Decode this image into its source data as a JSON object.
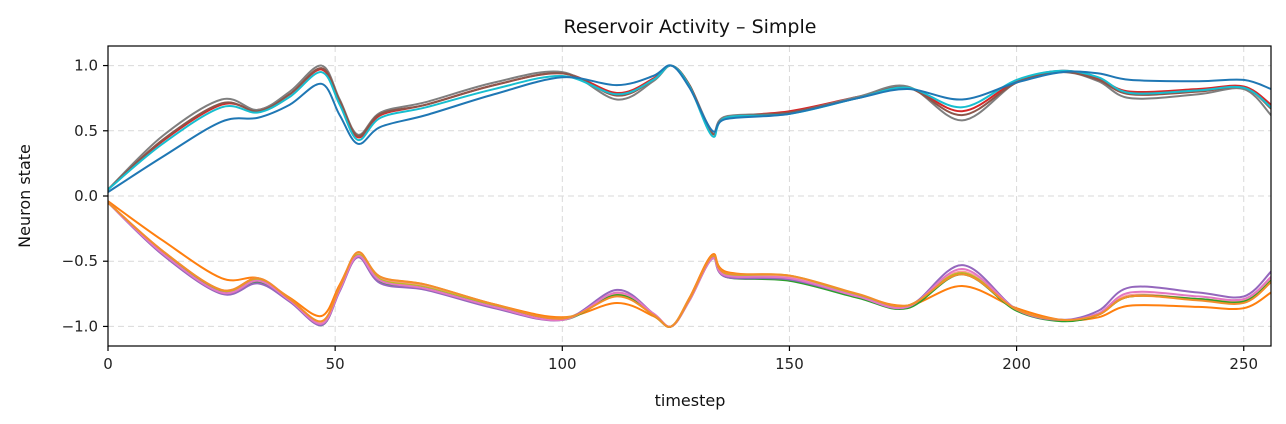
{
  "chart_data": {
    "type": "line",
    "title": "Reservoir Activity – Simple",
    "xlabel": "timestep",
    "ylabel": "Neuron state",
    "xlim": [
      0,
      256
    ],
    "ylim": [
      -1.15,
      1.15
    ],
    "xticks": [
      0,
      50,
      100,
      150,
      200,
      250
    ],
    "yticks": [
      1.0,
      0.5,
      0.0,
      -0.5,
      -1.0
    ],
    "xtick_labels": [
      "0",
      "50",
      "100",
      "150",
      "200",
      "250"
    ],
    "ytick_labels": [
      "1.0",
      "0.5",
      "0.0",
      "−0.5",
      "−1.0"
    ],
    "grid": true,
    "legend": "none",
    "x": [
      0,
      12,
      25,
      33,
      40,
      47,
      51,
      55,
      60,
      70,
      85,
      100,
      112,
      120,
      124,
      128,
      133,
      136,
      150,
      165,
      176,
      188,
      200,
      210,
      218,
      225,
      240,
      250,
      256
    ],
    "series": [
      {
        "color": "#d62728",
        "values": [
          0.05,
          0.42,
          0.7,
          0.66,
          0.78,
          0.97,
          0.72,
          0.45,
          0.62,
          0.7,
          0.85,
          0.94,
          0.79,
          0.9,
          1.0,
          0.85,
          0.48,
          0.6,
          0.65,
          0.76,
          0.83,
          0.65,
          0.88,
          0.96,
          0.9,
          0.8,
          0.82,
          0.84,
          0.7
        ]
      },
      {
        "color": "#7f7f7f",
        "values": [
          0.05,
          0.46,
          0.74,
          0.66,
          0.8,
          1.0,
          0.74,
          0.47,
          0.64,
          0.72,
          0.87,
          0.95,
          0.74,
          0.88,
          1.0,
          0.85,
          0.5,
          0.61,
          0.64,
          0.76,
          0.84,
          0.58,
          0.87,
          0.95,
          0.88,
          0.75,
          0.78,
          0.82,
          0.62
        ]
      },
      {
        "color": "#8c564b",
        "values": [
          0.05,
          0.43,
          0.71,
          0.65,
          0.78,
          0.98,
          0.73,
          0.46,
          0.63,
          0.7,
          0.85,
          0.94,
          0.77,
          0.89,
          1.0,
          0.85,
          0.48,
          0.6,
          0.64,
          0.75,
          0.83,
          0.62,
          0.87,
          0.95,
          0.89,
          0.78,
          0.8,
          0.83,
          0.67
        ]
      },
      {
        "color": "#17becf",
        "values": [
          0.05,
          0.4,
          0.68,
          0.64,
          0.76,
          0.95,
          0.7,
          0.43,
          0.6,
          0.68,
          0.82,
          0.92,
          0.78,
          0.89,
          1.0,
          0.84,
          0.46,
          0.6,
          0.63,
          0.75,
          0.83,
          0.68,
          0.89,
          0.96,
          0.91,
          0.79,
          0.81,
          0.83,
          0.68
        ]
      },
      {
        "color": "#1f77b4",
        "values": [
          0.03,
          0.3,
          0.57,
          0.6,
          0.7,
          0.86,
          0.62,
          0.4,
          0.53,
          0.62,
          0.78,
          0.91,
          0.85,
          0.92,
          1.0,
          0.83,
          0.5,
          0.59,
          0.63,
          0.75,
          0.82,
          0.74,
          0.87,
          0.95,
          0.94,
          0.89,
          0.88,
          0.89,
          0.82
        ]
      },
      {
        "color": "#ff7f0e",
        "values": [
          -0.04,
          -0.34,
          -0.63,
          -0.63,
          -0.78,
          -0.92,
          -0.68,
          -0.45,
          -0.62,
          -0.68,
          -0.83,
          -0.93,
          -0.82,
          -0.92,
          -1.0,
          -0.78,
          -0.45,
          -0.58,
          -0.63,
          -0.76,
          -0.84,
          -0.69,
          -0.86,
          -0.95,
          -0.93,
          -0.84,
          -0.85,
          -0.86,
          -0.74
        ]
      },
      {
        "color": "#ff9896",
        "values": [
          -0.05,
          -0.42,
          -0.72,
          -0.63,
          -0.79,
          -0.97,
          -0.7,
          -0.44,
          -0.63,
          -0.69,
          -0.84,
          -0.94,
          -0.75,
          -0.91,
          -1.0,
          -0.79,
          -0.47,
          -0.6,
          -0.62,
          -0.76,
          -0.84,
          -0.58,
          -0.87,
          -0.95,
          -0.91,
          -0.76,
          -0.79,
          -0.8,
          -0.64
        ]
      },
      {
        "color": "#bcbd22",
        "values": [
          -0.05,
          -0.43,
          -0.73,
          -0.64,
          -0.79,
          -0.98,
          -0.71,
          -0.45,
          -0.64,
          -0.7,
          -0.84,
          -0.94,
          -0.76,
          -0.91,
          -1.0,
          -0.79,
          -0.47,
          -0.6,
          -0.61,
          -0.76,
          -0.84,
          -0.59,
          -0.87,
          -0.95,
          -0.91,
          -0.77,
          -0.79,
          -0.81,
          -0.66
        ]
      },
      {
        "color": "#2ca02c",
        "values": [
          -0.05,
          -0.44,
          -0.74,
          -0.66,
          -0.8,
          -0.99,
          -0.72,
          -0.46,
          -0.66,
          -0.71,
          -0.85,
          -0.95,
          -0.76,
          -0.91,
          -1.0,
          -0.8,
          -0.48,
          -0.62,
          -0.65,
          -0.78,
          -0.86,
          -0.6,
          -0.88,
          -0.96,
          -0.91,
          -0.77,
          -0.79,
          -0.81,
          -0.65
        ]
      },
      {
        "color": "#9467bd",
        "values": [
          -0.05,
          -0.45,
          -0.75,
          -0.67,
          -0.81,
          -0.99,
          -0.73,
          -0.47,
          -0.67,
          -0.72,
          -0.86,
          -0.95,
          -0.72,
          -0.9,
          -1.0,
          -0.8,
          -0.48,
          -0.62,
          -0.64,
          -0.77,
          -0.85,
          -0.53,
          -0.87,
          -0.95,
          -0.88,
          -0.7,
          -0.74,
          -0.77,
          -0.58
        ]
      },
      {
        "color": "#e377c2",
        "values": [
          -0.05,
          -0.44,
          -0.74,
          -0.65,
          -0.8,
          -0.98,
          -0.72,
          -0.46,
          -0.65,
          -0.71,
          -0.85,
          -0.95,
          -0.74,
          -0.9,
          -1.0,
          -0.8,
          -0.48,
          -0.61,
          -0.63,
          -0.77,
          -0.85,
          -0.56,
          -0.87,
          -0.95,
          -0.9,
          -0.74,
          -0.77,
          -0.79,
          -0.62
        ]
      },
      {
        "color": "#f28e2b",
        "values": [
          -0.05,
          -0.42,
          -0.72,
          -0.63,
          -0.79,
          -0.96,
          -0.7,
          -0.43,
          -0.62,
          -0.68,
          -0.83,
          -0.94,
          -0.77,
          -0.91,
          -1.0,
          -0.79,
          -0.46,
          -0.59,
          -0.61,
          -0.75,
          -0.84,
          -0.6,
          -0.87,
          -0.95,
          -0.91,
          -0.77,
          -0.8,
          -0.82,
          -0.66
        ]
      }
    ]
  }
}
